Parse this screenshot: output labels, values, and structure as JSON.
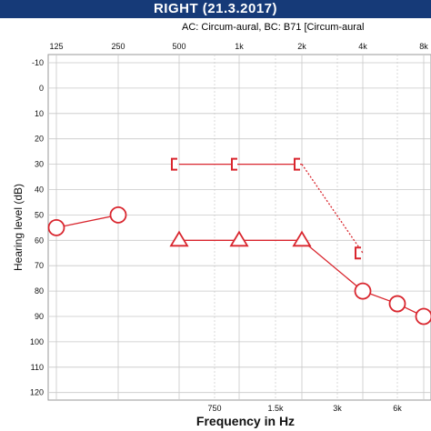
{
  "header": {
    "title": "RIGHT  (21.3.2017)",
    "subtitle": "AC: Circum-aural, BC: B71 [Circum-aural"
  },
  "chart_data": {
    "type": "line",
    "xlabel": "Frequency in Hz",
    "ylabel": "Hearing level (dB)",
    "ylim": [
      -10,
      120
    ],
    "y_ticks": [
      "-10",
      "0",
      "10",
      "20",
      "30",
      "40",
      "50",
      "60",
      "70",
      "80",
      "90",
      "100",
      "110",
      "120"
    ],
    "x_top_ticks": [
      "125",
      "250",
      "500",
      "1k",
      "2k",
      "4k",
      "8k"
    ],
    "x_bottom_ticks": [
      "750",
      "1.5k",
      "3k",
      "6k"
    ],
    "grid": true,
    "colors": {
      "series": "#d9262e",
      "grid": "#c8c8c8",
      "title_bar": "#163a78"
    },
    "series": [
      {
        "marker": "circle",
        "points": [
          {
            "x": "125",
            "y": 55
          },
          {
            "x": "250",
            "y": 50
          }
        ]
      },
      {
        "marker": "triangle",
        "points": [
          {
            "x": "500",
            "y": 60
          },
          {
            "x": "1k",
            "y": 60
          },
          {
            "x": "2k",
            "y": 60
          }
        ]
      },
      {
        "marker": "circle",
        "points": [
          {
            "x": "4k",
            "y": 80
          },
          {
            "x": "6k",
            "y": 85
          },
          {
            "x": "8k",
            "y": 90
          }
        ]
      },
      {
        "marker": "bracket",
        "points": [
          {
            "x": "500",
            "y": 30
          },
          {
            "x": "1k",
            "y": 30
          },
          {
            "x": "2k",
            "y": 30
          }
        ]
      },
      {
        "marker": "bracket",
        "points": [
          {
            "x": "4k",
            "y": 65
          }
        ]
      }
    ],
    "connectors": [
      {
        "from": {
          "x": "2k",
          "y": 60
        },
        "to": {
          "x": "4k",
          "y": 80
        },
        "style": "solid"
      },
      {
        "from": {
          "x": "2k",
          "y": 30
        },
        "to": {
          "x": "4k",
          "y": 65
        },
        "style": "dotted"
      }
    ]
  }
}
